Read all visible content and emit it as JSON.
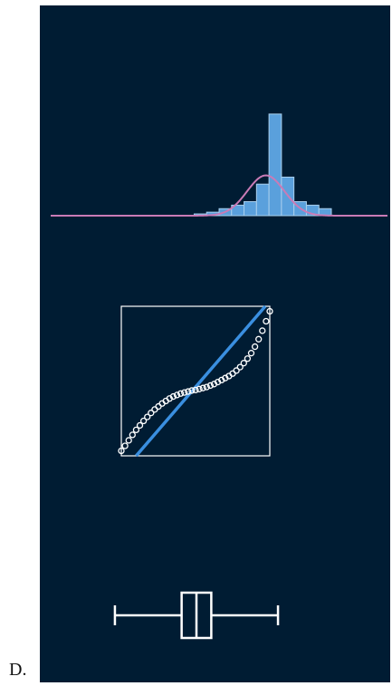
{
  "option_label": "D.",
  "colors": {
    "panel_background": "#001c33",
    "histogram_bar": "#5aa0dc",
    "histogram_bar_edge": "#a9cfee",
    "density_curve": "#c97bb6",
    "qq_line": "#3a8fe0",
    "qq_points": "#ffffff",
    "boxplot": "#ffffff",
    "frame": "#ffffff"
  },
  "chart_data": [
    {
      "type": "bar",
      "variant": "histogram with normal density overlay",
      "bins_center": [
        -5,
        -4,
        -3,
        -2,
        -1,
        0,
        1,
        2,
        3,
        4,
        5
      ],
      "counts": [
        0.5,
        1,
        2,
        3,
        4,
        9,
        29,
        11,
        4,
        3,
        2
      ],
      "bin_edges_x": [
        -5.5,
        -4.5,
        -3.5,
        -2.5,
        -1.5,
        -0.5,
        0.5,
        1.5,
        2.5,
        3.5,
        4.5,
        5.5
      ],
      "density_overlay": {
        "mean": 0.25,
        "sd": 1.5,
        "peak": 11.5
      },
      "xlim": [
        -17,
        10
      ],
      "ylim": [
        0,
        30
      ]
    },
    {
      "type": "scatter",
      "variant": "normal Q-Q plot (heavy-tailed sample)",
      "theoretical_quantiles": [
        -1.5,
        -1.425,
        -1.35,
        -1.275,
        -1.2,
        -1.125,
        -1.05,
        -0.975,
        -0.9,
        -0.825,
        -0.75,
        -0.675,
        -0.6,
        -0.525,
        -0.45,
        -0.375,
        -0.3,
        -0.225,
        -0.15,
        -0.075,
        0,
        0.075,
        0.15,
        0.225,
        0.3,
        0.375,
        0.45,
        0.525,
        0.6,
        0.675,
        0.75,
        0.825,
        0.9,
        0.975,
        1.05,
        1.125,
        1.2,
        1.275,
        1.35,
        1.425,
        1.5
      ],
      "sample_quantiles": [
        -1.4,
        -1.3,
        -1.19,
        -1.08,
        -0.98,
        -0.89,
        -0.8,
        -0.72,
        -0.64,
        -0.57,
        -0.51,
        -0.45,
        -0.4,
        -0.35,
        -0.31,
        -0.28,
        -0.25,
        -0.23,
        -0.21,
        -0.19,
        -0.18,
        -0.16,
        -0.14,
        -0.12,
        -0.09,
        -0.06,
        -0.02,
        0.02,
        0.06,
        0.1,
        0.15,
        0.21,
        0.28,
        0.36,
        0.45,
        0.56,
        0.69,
        0.84,
        1.01,
        1.2,
        1.4
      ],
      "reference_line": {
        "slope": 1.15,
        "intercept": -0.12
      },
      "xlim": [
        -1.5,
        1.5
      ],
      "ylim": [
        -1.5,
        1.5
      ]
    },
    {
      "type": "boxplot",
      "whisker_low": -5.5,
      "q1": -1.0,
      "median": 0,
      "q3": 1.0,
      "whisker_high": 5.5,
      "xlim": [
        -8,
        8
      ]
    }
  ]
}
